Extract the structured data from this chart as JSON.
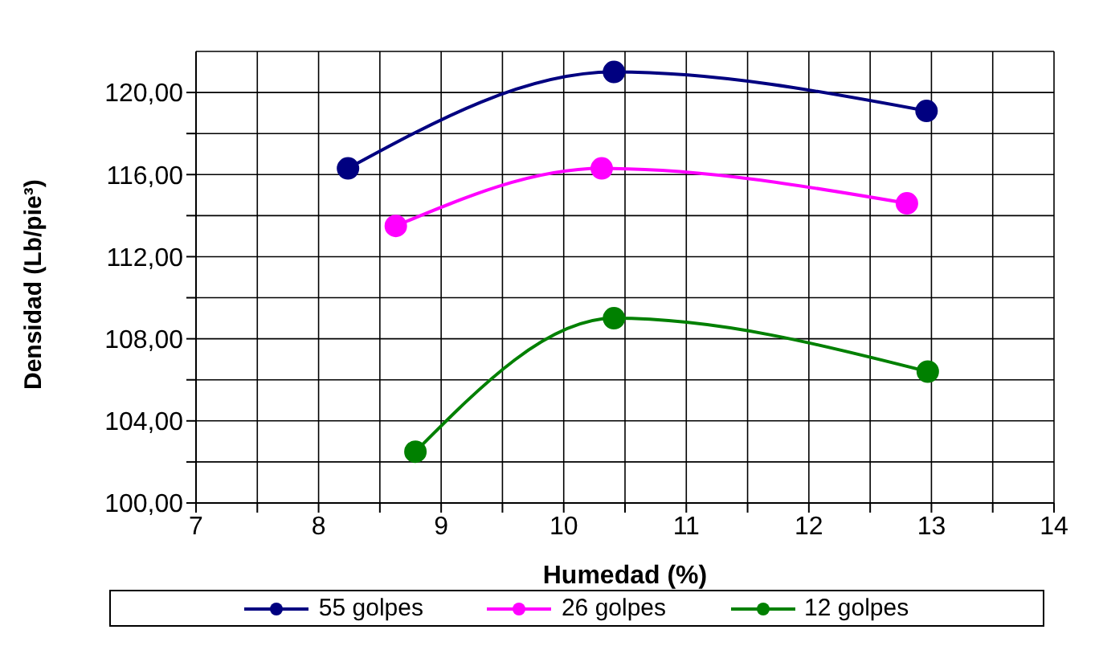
{
  "chart_data": {
    "type": "line",
    "xlabel": "Humedad (%)",
    "ylabel": "Densidad (Lb/pie³)",
    "series": [
      {
        "name": "55 golpes",
        "color": "#000080",
        "x": [
          8.24,
          10.41,
          12.96
        ],
        "values": [
          116.3,
          121.0,
          119.1
        ]
      },
      {
        "name": "26 golpes",
        "color": "#ff00ff",
        "x": [
          8.63,
          10.31,
          12.8
        ],
        "values": [
          113.5,
          116.3,
          114.6
        ]
      },
      {
        "name": "12 golpes",
        "color": "#008000",
        "x": [
          8.79,
          10.41,
          12.97
        ],
        "values": [
          102.5,
          109.0,
          106.4
        ]
      }
    ],
    "xlim": [
      7,
      14
    ],
    "xticks": [
      7,
      {
        "value": 7.5,
        "label": null
      },
      8,
      {
        "value": 8.5,
        "label": null
      },
      9,
      {
        "value": 9.5,
        "label": null
      },
      10,
      {
        "value": 10.5,
        "label": null
      },
      11,
      {
        "value": 11.5,
        "label": null
      },
      12,
      {
        "value": 12.5,
        "label": null
      },
      13,
      {
        "value": 13.5,
        "label": null
      },
      14
    ],
    "ylim": [
      100,
      122
    ],
    "yticks": [
      {
        "value": 100,
        "label": "100,00"
      },
      {
        "value": 102,
        "label": null
      },
      {
        "value": 104,
        "label": "104,00"
      },
      {
        "value": 106,
        "label": null
      },
      {
        "value": 108,
        "label": "108,00"
      },
      {
        "value": 110,
        "label": null
      },
      {
        "value": 112,
        "label": "112,00"
      },
      {
        "value": 114,
        "label": null
      },
      {
        "value": 116,
        "label": "116,00"
      },
      {
        "value": 118,
        "label": null
      },
      {
        "value": 120,
        "label": "120,00"
      }
    ],
    "grid": true,
    "marker": "circle",
    "line_style": "solid",
    "legend": "bottom"
  }
}
